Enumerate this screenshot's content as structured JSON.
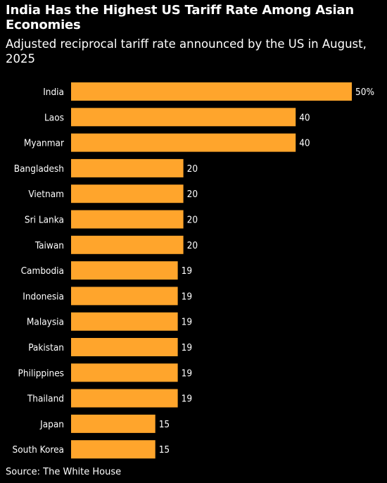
{
  "chart_data": {
    "type": "bar",
    "orientation": "horizontal",
    "title": "India Has the Highest US Tariff Rate Among Asian Economies",
    "subtitle": "Adjusted reciprocal tariff rate announced by the US in August, 2025",
    "categories": [
      "India",
      "Laos",
      "Myanmar",
      "Bangladesh",
      "Vietnam",
      "Sri Lanka",
      "Taiwan",
      "Cambodia",
      "Indonesia",
      "Malaysia",
      "Pakistan",
      "Philippines",
      "Thailand",
      "Japan",
      "South Korea"
    ],
    "values": [
      50,
      40,
      40,
      20,
      20,
      20,
      20,
      19,
      19,
      19,
      19,
      19,
      19,
      15,
      15
    ],
    "value_labels": [
      "50%",
      "40",
      "40",
      "20",
      "20",
      "20",
      "20",
      "19",
      "19",
      "19",
      "19",
      "19",
      "19",
      "15",
      "15"
    ],
    "xlim": [
      0,
      50
    ],
    "grid": false,
    "bar_color": "#FFA52C",
    "background": "#000000",
    "source": "Source: The White House"
  }
}
